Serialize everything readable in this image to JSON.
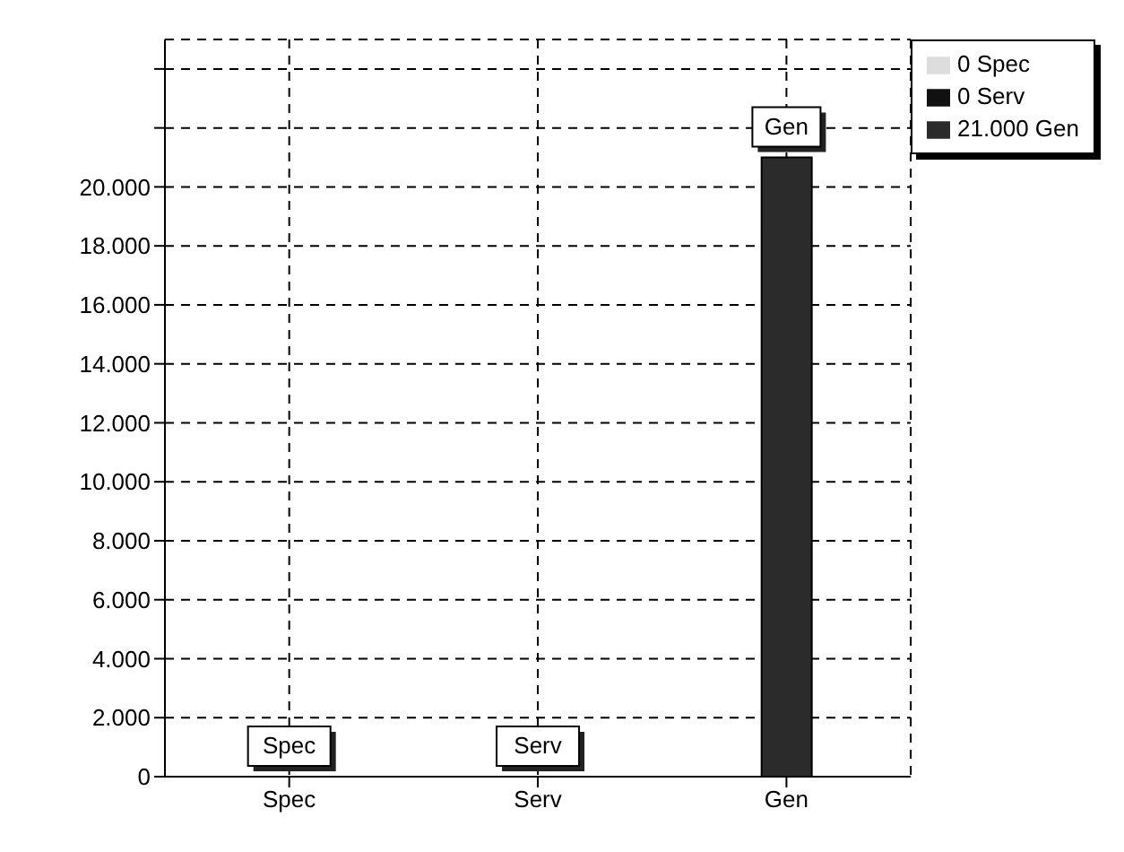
{
  "chart_data": {
    "type": "bar",
    "categories": [
      "Spec",
      "Serv",
      "Gen"
    ],
    "stacked": true,
    "series": [
      {
        "name": "0 Spec",
        "color": "#dddddd",
        "values": [
          0,
          null,
          null
        ]
      },
      {
        "name": "0 Serv",
        "color": "#111111",
        "values": [
          null,
          0,
          null
        ]
      },
      {
        "name": "21.000 Gen",
        "color": "#2b2b2b",
        "values": [
          null,
          null,
          21000
        ]
      }
    ],
    "ylim": [
      0,
      25000
    ],
    "yticks": [
      0,
      {
        "value": 2000,
        "label": "2.000"
      },
      {
        "value": 4000,
        "label": "4.000"
      },
      {
        "value": 6000,
        "label": "6.000"
      },
      {
        "value": 8000,
        "label": "8.000"
      },
      {
        "value": 10000,
        "label": "10.000"
      },
      {
        "value": 12000,
        "label": "12.000"
      },
      {
        "value": 14000,
        "label": "14.000"
      },
      {
        "value": 16000,
        "label": "16.000"
      },
      {
        "value": 18000,
        "label": "18.000"
      },
      {
        "value": 20000,
        "label": "20.000"
      },
      {
        "value": 22000,
        "label": null
      },
      {
        "value": 24000,
        "label": null
      }
    ],
    "annotations": [
      {
        "text": "Spec",
        "x": "Spec",
        "y": 0
      },
      {
        "text": "Serv",
        "x": "Serv",
        "y": 0
      },
      {
        "text": "Gen",
        "x": "Gen",
        "y": 21000
      }
    ],
    "grid": true,
    "legend": "top right"
  }
}
